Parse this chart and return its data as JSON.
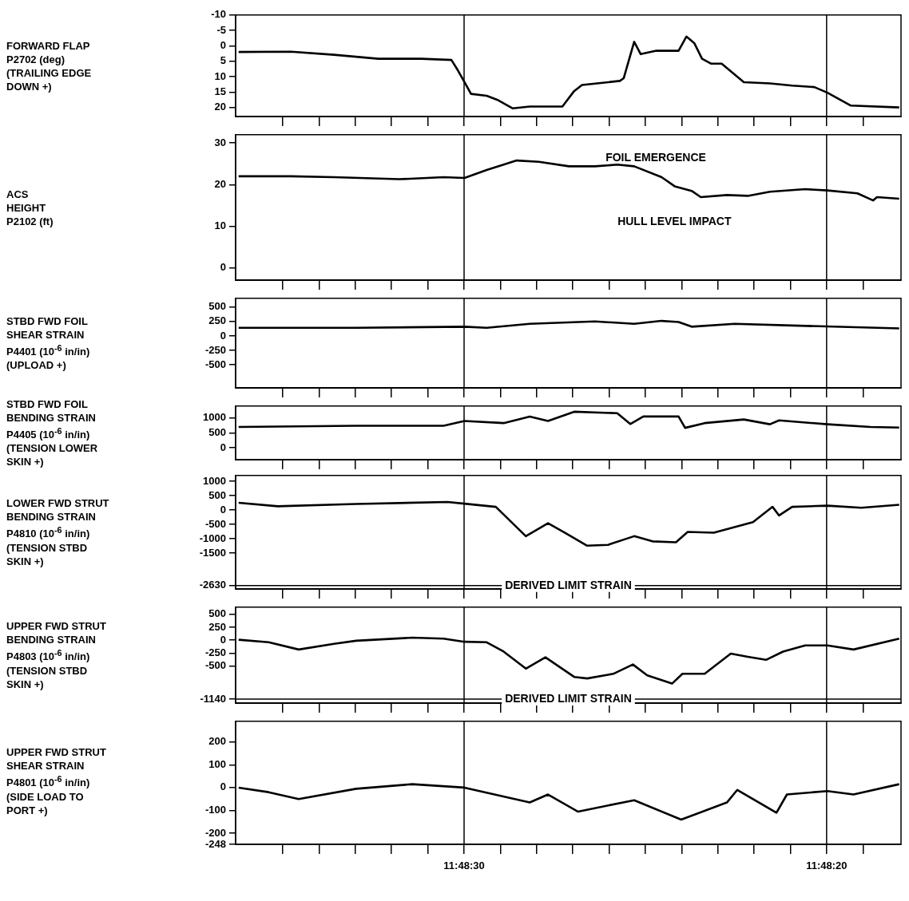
{
  "chart_data": [
    {
      "type": "line",
      "ylabel": "FORWARD FLAP\nP2702 (deg)\n(TRAILING EDGE\nDOWN +)",
      "color": "#000000",
      "tick_labels": "y",
      "xlim": [
        11.810083,
        11.804986
      ],
      "xticks": [
        {
          "value": 11.809722,
          "label": null
        },
        {
          "value": 11.809444,
          "label": null
        },
        {
          "value": 11.809167,
          "label": null
        },
        {
          "value": 11.808889,
          "label": null
        },
        {
          "value": 11.808611,
          "label": null
        },
        {
          "value": 11.808333,
          "label": null
        },
        {
          "value": 11.808056,
          "label": null
        },
        {
          "value": 11.807778,
          "label": null
        },
        {
          "value": 11.8075,
          "label": null
        },
        {
          "value": 11.807222,
          "label": null
        },
        {
          "value": 11.806944,
          "label": null
        },
        {
          "value": 11.806667,
          "label": null
        },
        {
          "value": 11.806389,
          "label": null
        },
        {
          "value": 11.806111,
          "label": null
        },
        {
          "value": 11.805833,
          "label": null
        },
        {
          "value": 11.805556,
          "label": null
        },
        {
          "value": 11.805278,
          "label": null
        }
      ],
      "ylim": [
        23,
        -10
      ],
      "yticks": [
        -10,
        -5,
        0,
        5,
        10,
        15,
        20
      ],
      "x": [
        11.81006,
        11.80966,
        11.80933,
        11.80899,
        11.80866,
        11.80843,
        11.80838,
        11.80833,
        11.80828,
        11.80816,
        11.80808,
        11.80796,
        11.80783,
        11.80758,
        11.80749,
        11.80743,
        11.80714,
        11.80711,
        11.80703,
        11.80698,
        11.80686,
        11.80669,
        11.80663,
        11.80657,
        11.80651,
        11.80644,
        11.80636,
        11.80619,
        11.80599,
        11.80582,
        11.80565,
        11.80555,
        11.80537,
        11.805
      ],
      "values": [
        2.0,
        1.9,
        2.9,
        4.2,
        4.2,
        4.6,
        8.0,
        11.8,
        15.6,
        16.2,
        17.5,
        20.3,
        19.7,
        19.7,
        14.7,
        12.7,
        11.4,
        10.5,
        -1.3,
        2.7,
        1.6,
        1.6,
        -3.0,
        -0.9,
        4.2,
        5.8,
        5.8,
        11.8,
        12.2,
        12.9,
        13.4,
        15.2,
        19.4,
        20.0
      ],
      "ref_lines": [
        {
          "axis": "x",
          "value": 11.808333
        },
        {
          "axis": "x",
          "value": 11.805556
        }
      ]
    },
    {
      "type": "line",
      "ylabel": "ACS\nHEIGHT\nP2102 (ft)",
      "color": "#000000",
      "tick_labels": "y",
      "xlim": [
        11.810083,
        11.804986
      ],
      "xticks": [
        {
          "value": 11.809722,
          "label": null
        },
        {
          "value": 11.809444,
          "label": null
        },
        {
          "value": 11.809167,
          "label": null
        },
        {
          "value": 11.808889,
          "label": null
        },
        {
          "value": 11.808611,
          "label": null
        },
        {
          "value": 11.808333,
          "label": null
        },
        {
          "value": 11.808056,
          "label": null
        },
        {
          "value": 11.807778,
          "label": null
        },
        {
          "value": 11.8075,
          "label": null
        },
        {
          "value": 11.807222,
          "label": null
        },
        {
          "value": 11.806944,
          "label": null
        },
        {
          "value": 11.806667,
          "label": null
        },
        {
          "value": 11.806389,
          "label": null
        },
        {
          "value": 11.806111,
          "label": null
        },
        {
          "value": 11.805833,
          "label": null
        },
        {
          "value": 11.805556,
          "label": null
        },
        {
          "value": 11.805278,
          "label": null
        }
      ],
      "ylim": [
        -3,
        32
      ],
      "yticks": [
        0,
        10,
        20,
        30
      ],
      "x": [
        11.81006,
        11.80966,
        11.80933,
        11.80883,
        11.80849,
        11.80833,
        11.80816,
        11.80803,
        11.80793,
        11.80776,
        11.80753,
        11.80733,
        11.80716,
        11.80703,
        11.80682,
        11.80672,
        11.80659,
        11.80652,
        11.80632,
        11.80616,
        11.80599,
        11.80572,
        11.80555,
        11.80532,
        11.8052,
        11.80517,
        11.805
      ],
      "values": [
        22.0,
        22.0,
        21.8,
        21.3,
        21.8,
        21.6,
        23.5,
        24.8,
        25.8,
        25.5,
        24.4,
        24.4,
        24.8,
        24.4,
        21.8,
        19.6,
        18.5,
        17.0,
        17.5,
        17.3,
        18.3,
        18.9,
        18.6,
        17.9,
        16.2,
        17.0,
        16.6
      ],
      "annotations": [
        "FOIL EMERGENCE",
        "HULL LEVEL IMPACT"
      ],
      "ref_lines": [
        {
          "axis": "x",
          "value": 11.808333
        },
        {
          "axis": "x",
          "value": 11.805556
        }
      ]
    },
    {
      "type": "line",
      "ylabel": "STBD FWD FOIL\nSHEAR STRAIN\nP4401 (10$^{-6}$ in/in)\n(UPLOAD +)",
      "color": "#000000",
      "tick_labels": "y",
      "xlim": [
        11.810083,
        11.804986
      ],
      "xticks": [
        {
          "value": 11.809722,
          "label": null
        },
        {
          "value": 11.809444,
          "label": null
        },
        {
          "value": 11.809167,
          "label": null
        },
        {
          "value": 11.808889,
          "label": null
        },
        {
          "value": 11.808611,
          "label": null
        },
        {
          "value": 11.808333,
          "label": null
        },
        {
          "value": 11.808056,
          "label": null
        },
        {
          "value": 11.807778,
          "label": null
        },
        {
          "value": 11.8075,
          "label": null
        },
        {
          "value": 11.807222,
          "label": null
        },
        {
          "value": 11.806944,
          "label": null
        },
        {
          "value": 11.806667,
          "label": null
        },
        {
          "value": 11.806389,
          "label": null
        },
        {
          "value": 11.806111,
          "label": null
        },
        {
          "value": 11.805833,
          "label": null
        },
        {
          "value": 11.805556,
          "label": null
        },
        {
          "value": 11.805278,
          "label": null
        }
      ],
      "ylim": [
        -900,
        650
      ],
      "yticks": [
        -500,
        -250,
        0,
        250,
        500
      ],
      "x": [
        11.81006,
        11.80916,
        11.80833,
        11.80816,
        11.80783,
        11.80733,
        11.80703,
        11.80682,
        11.80669,
        11.80659,
        11.80626,
        11.80582,
        11.805
      ],
      "values": [
        140,
        140,
        160,
        140,
        210,
        250,
        210,
        260,
        240,
        160,
        210,
        180,
        130
      ],
      "ref_lines": [
        {
          "axis": "x",
          "value": 11.808333
        },
        {
          "axis": "x",
          "value": 11.805556
        }
      ]
    },
    {
      "type": "line",
      "ylabel": "STBD FWD FOIL\nBENDING STRAIN\nP4405 (10$^{-6}$ in/in)\n(TENSION LOWER\nSKIN +)",
      "color": "#000000",
      "tick_labels": "y",
      "xlim": [
        11.810083,
        11.804986
      ],
      "xticks": [
        {
          "value": 11.809722,
          "label": null
        },
        {
          "value": 11.809444,
          "label": null
        },
        {
          "value": 11.809167,
          "label": null
        },
        {
          "value": 11.808889,
          "label": null
        },
        {
          "value": 11.808611,
          "label": null
        },
        {
          "value": 11.808333,
          "label": null
        },
        {
          "value": 11.808056,
          "label": null
        },
        {
          "value": 11.807778,
          "label": null
        },
        {
          "value": 11.8075,
          "label": null
        },
        {
          "value": 11.807222,
          "label": null
        },
        {
          "value": 11.806944,
          "label": null
        },
        {
          "value": 11.806667,
          "label": null
        },
        {
          "value": 11.806389,
          "label": null
        },
        {
          "value": 11.806111,
          "label": null
        },
        {
          "value": 11.805833,
          "label": null
        },
        {
          "value": 11.805556,
          "label": null
        },
        {
          "value": 11.805278,
          "label": null
        }
      ],
      "ylim": [
        -400,
        1400
      ],
      "yticks": [
        0,
        500,
        1000
      ],
      "x": [
        11.81006,
        11.80916,
        11.80849,
        11.80833,
        11.80803,
        11.80783,
        11.80769,
        11.80749,
        11.80716,
        11.80706,
        11.80696,
        11.80669,
        11.80664,
        11.80649,
        11.80619,
        11.80599,
        11.80592,
        11.80555,
        11.80522,
        11.805
      ],
      "values": [
        700,
        740,
        740,
        900,
        830,
        1050,
        900,
        1210,
        1160,
        800,
        1050,
        1050,
        670,
        830,
        950,
        790,
        920,
        790,
        700,
        680
      ],
      "ref_lines": [
        {
          "axis": "x",
          "value": 11.808333
        },
        {
          "axis": "x",
          "value": 11.805556
        }
      ]
    },
    {
      "type": "line",
      "ylabel": "LOWER FWD STRUT\nBENDING STRAIN\nP4810 (10$^{-6}$ in/in)\n(TENSION STBD\nSKIN +)",
      "color": "#000000",
      "tick_labels": "y",
      "xlim": [
        11.810083,
        11.804986
      ],
      "xticks": [
        {
          "value": 11.809722,
          "label": null
        },
        {
          "value": 11.809444,
          "label": null
        },
        {
          "value": 11.809167,
          "label": null
        },
        {
          "value": 11.808889,
          "label": null
        },
        {
          "value": 11.808611,
          "label": null
        },
        {
          "value": 11.808333,
          "label": null
        },
        {
          "value": 11.808056,
          "label": null
        },
        {
          "value": 11.807778,
          "label": null
        },
        {
          "value": 11.8075,
          "label": null
        },
        {
          "value": 11.807222,
          "label": null
        },
        {
          "value": 11.806944,
          "label": null
        },
        {
          "value": 11.806667,
          "label": null
        },
        {
          "value": 11.806389,
          "label": null
        },
        {
          "value": 11.806111,
          "label": null
        },
        {
          "value": 11.805833,
          "label": null
        },
        {
          "value": 11.805556,
          "label": null
        },
        {
          "value": 11.805278,
          "label": null
        }
      ],
      "ylim": [
        -2750,
        1200
      ],
      "yticks": [
        -2630,
        -1500,
        -1000,
        -500,
        0,
        500,
        1000
      ],
      "x": [
        11.81006,
        11.80976,
        11.80916,
        11.80846,
        11.80833,
        11.80809,
        11.80786,
        11.80769,
        11.80756,
        11.80739,
        11.80723,
        11.80703,
        11.80689,
        11.80671,
        11.80662,
        11.80642,
        11.80612,
        11.80597,
        11.80592,
        11.80582,
        11.80555,
        11.80529,
        11.805
      ],
      "values": [
        250,
        130,
        210,
        280,
        220,
        110,
        -910,
        -460,
        -790,
        -1240,
        -1210,
        -910,
        -1090,
        -1120,
        -760,
        -790,
        -420,
        110,
        -190,
        110,
        150,
        80,
        180
      ],
      "ref_lines": [
        {
          "axis": "x",
          "value": 11.808333
        },
        {
          "axis": "x",
          "value": 11.805556
        },
        {
          "axis": "y",
          "value": -2630,
          "label": "DERIVED LIMIT STRAIN"
        }
      ]
    },
    {
      "type": "line",
      "ylabel": "UPPER FWD STRUT\nBENDING STRAIN\nP4803 (10$^{-6}$ in/in)\n(TENSION STBD\nSKIN +)",
      "color": "#000000",
      "tick_labels": "y",
      "xlim": [
        11.810083,
        11.804986
      ],
      "xticks": [
        {
          "value": 11.809722,
          "label": null
        },
        {
          "value": 11.809444,
          "label": null
        },
        {
          "value": 11.809167,
          "label": null
        },
        {
          "value": 11.808889,
          "label": null
        },
        {
          "value": 11.808611,
          "label": null
        },
        {
          "value": 11.808333,
          "label": null
        },
        {
          "value": 11.808056,
          "label": null
        },
        {
          "value": 11.807778,
          "label": null
        },
        {
          "value": 11.8075,
          "label": null
        },
        {
          "value": 11.807222,
          "label": null
        },
        {
          "value": 11.806944,
          "label": null
        },
        {
          "value": 11.806667,
          "label": null
        },
        {
          "value": 11.806389,
          "label": null
        },
        {
          "value": 11.806111,
          "label": null
        },
        {
          "value": 11.805833,
          "label": null
        },
        {
          "value": 11.805556,
          "label": null
        },
        {
          "value": 11.805278,
          "label": null
        }
      ],
      "ylim": [
        -1220,
        640
      ],
      "yticks": [
        -1140,
        -500,
        -250,
        0,
        250,
        500
      ],
      "x": [
        11.81006,
        11.80983,
        11.8096,
        11.80933,
        11.80916,
        11.80873,
        11.80849,
        11.80833,
        11.80816,
        11.80803,
        11.80786,
        11.80771,
        11.80749,
        11.80739,
        11.80719,
        11.80704,
        11.80693,
        11.80674,
        11.80666,
        11.80649,
        11.80629,
        11.80616,
        11.80602,
        11.80589,
        11.80572,
        11.80555,
        11.80535,
        11.805
      ],
      "values": [
        10,
        -40,
        -180,
        -70,
        -10,
        50,
        30,
        -30,
        -40,
        -220,
        -550,
        -330,
        -710,
        -740,
        -650,
        -470,
        -680,
        -840,
        -650,
        -650,
        -260,
        -320,
        -380,
        -220,
        -100,
        -100,
        -180,
        30
      ],
      "ref_lines": [
        {
          "axis": "x",
          "value": 11.808333
        },
        {
          "axis": "x",
          "value": 11.805556
        },
        {
          "axis": "y",
          "value": -1140,
          "label": "DERIVED LIMIT STRAIN"
        }
      ]
    },
    {
      "type": "line",
      "ylabel": "UPPER FWD STRUT\nSHEAR STRAIN\nP4801 (10$^{-6}$ in/in)\n(SIDE LOAD TO\nPORT +)",
      "color": "#000000",
      "xlim": [
        11.810083,
        11.804986
      ],
      "xticks": [
        {
          "value": 11.809722,
          "label": null
        },
        {
          "value": 11.809444,
          "label": null
        },
        {
          "value": 11.809167,
          "label": null
        },
        {
          "value": 11.808889,
          "label": null
        },
        {
          "value": 11.808611,
          "label": null
        },
        {
          "value": 11.808333,
          "label": "11:48:30"
        },
        {
          "value": 11.808056,
          "label": null
        },
        {
          "value": 11.807778,
          "label": null
        },
        {
          "value": 11.8075,
          "label": null
        },
        {
          "value": 11.807222,
          "label": null
        },
        {
          "value": 11.806944,
          "label": null
        },
        {
          "value": 11.806667,
          "label": null
        },
        {
          "value": 11.806389,
          "label": null
        },
        {
          "value": 11.806111,
          "label": null
        },
        {
          "value": 11.805833,
          "label": null
        },
        {
          "value": 11.805556,
          "label": "11:48:20"
        },
        {
          "value": 11.805278,
          "label": null
        }
      ],
      "ylim": [
        -248,
        290
      ],
      "yticks": [
        -248,
        -200,
        -100,
        0,
        100,
        200
      ],
      "x": [
        11.81006,
        11.80983,
        11.8096,
        11.80916,
        11.80873,
        11.80833,
        11.80783,
        11.80769,
        11.80746,
        11.80703,
        11.80667,
        11.80632,
        11.80624,
        11.80594,
        11.80586,
        11.80555,
        11.80535,
        11.805
      ],
      "values": [
        0,
        -20,
        -50,
        -5,
        15,
        0,
        -65,
        -30,
        -105,
        -55,
        -140,
        -65,
        -10,
        -110,
        -30,
        -15,
        -30,
        15
      ],
      "ref_lines": [
        {
          "axis": "x",
          "value": 11.808333
        },
        {
          "axis": "x",
          "value": 11.805556
        }
      ]
    }
  ]
}
